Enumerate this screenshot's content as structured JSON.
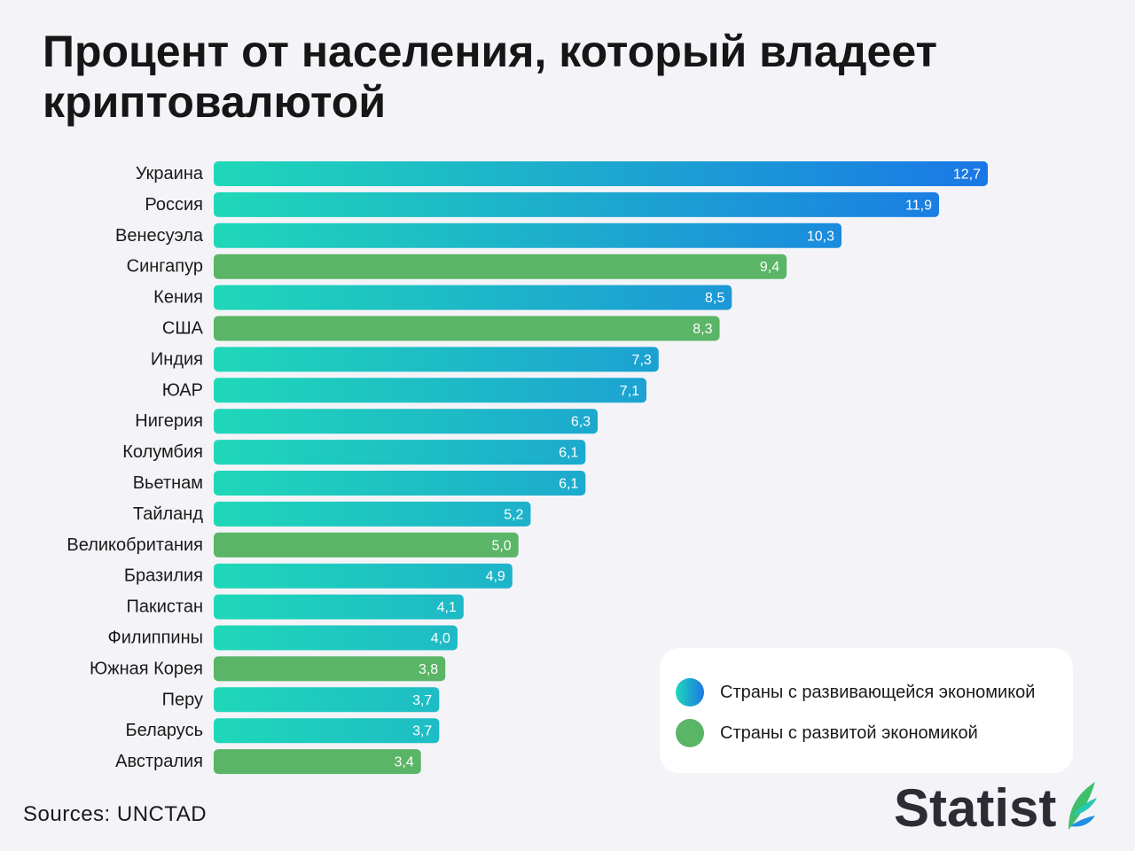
{
  "title": "Процент от населения, который владеет\nкриптовалютой",
  "source": "Sources: UNCTAD",
  "brand": "Statist",
  "icons": {
    "brand": "leaf-logo-icon"
  },
  "colors": {
    "background": "#f4f4f8",
    "developing_start": "#1fd8b8",
    "developing_end": "#1a78e6",
    "developed": "#5ab566",
    "brand_green": "#3fbf6a",
    "brand_teal": "#27c9b4",
    "brand_blue": "#1f8fe0"
  },
  "legend": {
    "position": "bottom-right",
    "items": [
      {
        "label": "Страны с развивающейся экономикой",
        "group": "developing"
      },
      {
        "label": "Страны с развитой экономикой",
        "group": "developed"
      }
    ]
  },
  "chart_data": {
    "type": "bar",
    "orientation": "horizontal",
    "categories": [
      "Украина",
      "Россия",
      "Венесуэла",
      "Сингапур",
      "Кения",
      "США",
      "Индия",
      "ЮАР",
      "Нигерия",
      "Колумбия",
      "Вьетнам",
      "Тайланд",
      "Великобритания",
      "Бразилия",
      "Пакистан",
      "Филиппины",
      "Южная Корея",
      "Перу",
      "Беларусь",
      "Австралия"
    ],
    "values": [
      12.7,
      11.9,
      10.3,
      9.4,
      8.5,
      8.3,
      7.3,
      7.1,
      6.3,
      6.1,
      6.1,
      5.2,
      5.0,
      4.9,
      4.1,
      4.0,
      3.8,
      3.7,
      3.7,
      3.4
    ],
    "value_labels": [
      "12,7",
      "11,9",
      "10,3",
      "9,4",
      "8,5",
      "8,3",
      "7,3",
      "7,1",
      "6,3",
      "6,1",
      "6,1",
      "5,2",
      "5,0",
      "4,9",
      "4,1",
      "4,0",
      "3,8",
      "3,7",
      "3,7",
      "3,4"
    ],
    "groups": [
      "developing",
      "developing",
      "developing",
      "developed",
      "developing",
      "developed",
      "developing",
      "developing",
      "developing",
      "developing",
      "developing",
      "developing",
      "developed",
      "developing",
      "developing",
      "developing",
      "developed",
      "developing",
      "developing",
      "developed"
    ],
    "xlim": [
      0,
      12.7
    ],
    "grid": false,
    "legend_position": "bottom-right"
  }
}
